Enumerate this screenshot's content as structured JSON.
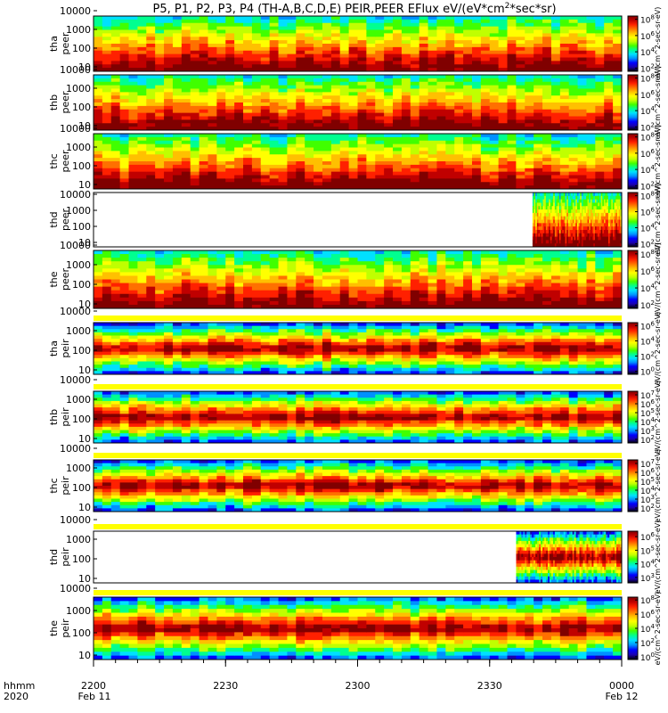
{
  "title_text": "P5, P1, P2, P3, P4 (TH-A,B,C,D,E) PEIR,PEER EFlux eV/(eV*cm",
  "title_sup": "2",
  "title_tail": "*sec*sr)",
  "colors": {
    "colormap": [
      "#000000",
      "#1a00b0",
      "#0000ff",
      "#0090ff",
      "#00e0ff",
      "#00ff90",
      "#40ff00",
      "#c0ff00",
      "#ffff00",
      "#ffc000",
      "#ff7000",
      "#ff2000",
      "#c00000",
      "#800000"
    ],
    "fill": "#ffffff",
    "band": "#ffff00",
    "frame": "#000000"
  },
  "chart_data": {
    "type": "heatmap",
    "x_time_labels": {
      "row1": "hhmm",
      "row2": "2020",
      "ticks": [
        "2200",
        "2230",
        "2300",
        "2330",
        "0000"
      ],
      "date_first": "Feb 11",
      "date_last": "Feb 12"
    },
    "x_hhmm": [
      2200,
      2230,
      2300,
      2330,
      2400
    ],
    "y_scale": "log",
    "ytick_labels": [
      "10000",
      "1000",
      "100",
      "10"
    ],
    "y_values": [
      10000,
      1000,
      100,
      10
    ],
    "colorbar_unit": "eV/(cm^2-sec-sr-eV)",
    "panels": [
      {
        "probe": "tha",
        "species": "peer",
        "cbar_ticks": [
          "10^8",
          "10^6",
          "10^4",
          "10^2"
        ],
        "cbar_values": [
          100000000,
          1000000,
          10000,
          100
        ],
        "coverage": [
          0,
          1
        ]
      },
      {
        "probe": "thb",
        "species": "peer",
        "cbar_ticks": [
          "10^8",
          "10^6",
          "10^4",
          "10^2"
        ],
        "cbar_values": [
          100000000,
          1000000,
          10000,
          100
        ],
        "coverage": [
          0,
          1
        ]
      },
      {
        "probe": "thc",
        "species": "peer",
        "cbar_ticks": [
          "10^8",
          "10^6",
          "10^4",
          "10^2"
        ],
        "cbar_values": [
          100000000,
          1000000,
          10000,
          100
        ],
        "coverage": [
          0,
          1
        ]
      },
      {
        "probe": "thd",
        "species": "peer",
        "cbar_ticks": [
          "10^8",
          "10^6",
          "10^4",
          "10^2"
        ],
        "cbar_values": [
          100000000,
          1000000,
          10000,
          100
        ],
        "coverage": [
          0.831,
          1
        ]
      },
      {
        "probe": "the",
        "species": "peer",
        "cbar_ticks": [
          "10^8",
          "10^6",
          "10^4",
          "10^2"
        ],
        "cbar_values": [
          100000000,
          1000000,
          10000,
          100
        ],
        "coverage": [
          0,
          1
        ]
      },
      {
        "probe": "tha",
        "species": "peir",
        "cbar_ticks": [
          "10^6",
          "10^4",
          "10^2",
          "10^0"
        ],
        "cbar_values": [
          1000000,
          10000,
          100,
          1
        ],
        "coverage": [
          0,
          1
        ]
      },
      {
        "probe": "thb",
        "species": "peir",
        "cbar_ticks": [
          "10^7",
          "10^6",
          "10^5",
          "10^4",
          "10^3",
          "10^2"
        ],
        "cbar_values": [
          10000000,
          1000000,
          100000,
          10000,
          1000,
          100
        ],
        "coverage": [
          0,
          1
        ]
      },
      {
        "probe": "thc",
        "species": "peir",
        "cbar_ticks": [
          "10^7",
          "10^6",
          "10^5",
          "10^4",
          "10^3",
          "10^2"
        ],
        "cbar_values": [
          10000000,
          1000000,
          100000,
          10000,
          1000,
          100
        ],
        "coverage": [
          0,
          1
        ]
      },
      {
        "probe": "thd",
        "species": "peir",
        "cbar_ticks": [
          "10^6",
          "10^5",
          "10^4",
          "10^3"
        ],
        "cbar_values": [
          1000000,
          100000,
          10000,
          1000
        ],
        "coverage": [
          0.8,
          1
        ]
      },
      {
        "probe": "the",
        "species": "peir",
        "cbar_ticks": [
          "10^8",
          "10^6",
          "10^4",
          "10^2",
          "10^0"
        ],
        "cbar_values": [
          100000000,
          1000000,
          10000,
          100,
          1
        ],
        "coverage": [
          0,
          1
        ]
      }
    ]
  }
}
